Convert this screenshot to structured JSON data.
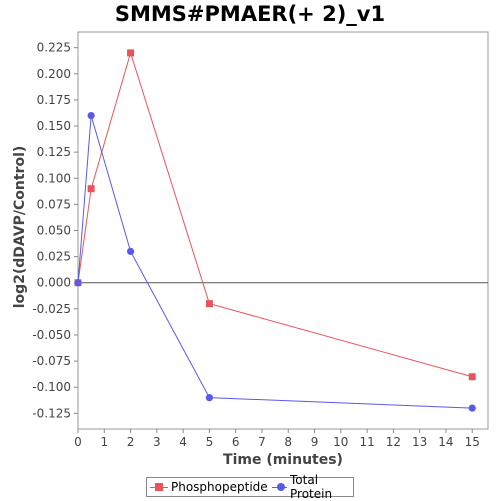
{
  "chart_data": {
    "type": "line",
    "title": "SMMS#PMAER(+ 2)_v1",
    "xlabel": "Time (minutes)",
    "ylabel": "log2(dDAVP/Control)",
    "xlim": [
      0,
      15.6
    ],
    "ylim": [
      -0.14,
      0.24
    ],
    "x_ticks": [
      0,
      1,
      2,
      3,
      4,
      5,
      6,
      7,
      8,
      9,
      10,
      11,
      12,
      13,
      14,
      15
    ],
    "y_ticks": [
      "0.225",
      "0.200",
      "0.175",
      "0.150",
      "0.125",
      "0.100",
      "0.075",
      "0.050",
      "0.025",
      "0.000",
      "-0.025",
      "-0.050",
      "-0.075",
      "-0.100",
      "-0.125"
    ],
    "zero_line": true,
    "grid": false,
    "legend_position": "bottom",
    "series": [
      {
        "name": "Phosphopeptide",
        "marker": "square",
        "color": "#e8545a",
        "x": [
          0,
          0.5,
          2,
          5,
          15
        ],
        "y": [
          0.0,
          0.09,
          0.22,
          -0.02,
          -0.09
        ]
      },
      {
        "name": "Total Protein",
        "marker": "circle",
        "color": "#5a5ae8",
        "x": [
          0,
          0.5,
          2,
          5,
          15
        ],
        "y": [
          0.0,
          0.16,
          0.03,
          -0.11,
          -0.12
        ]
      }
    ]
  }
}
